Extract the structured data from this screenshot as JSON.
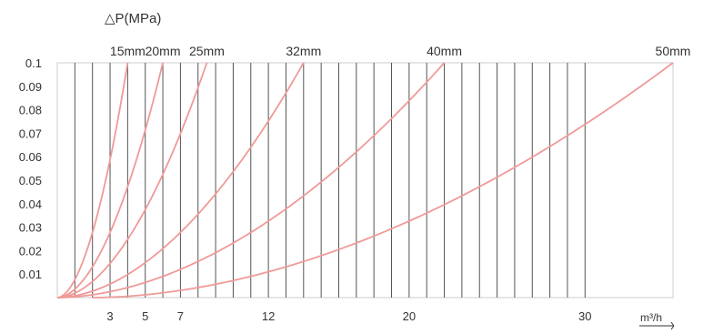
{
  "chart_data": {
    "type": "line",
    "ylabel": "△P(MPa)",
    "xlabel": "m³/h",
    "xlim": [
      0,
      35
    ],
    "ylim": [
      0,
      0.1
    ],
    "x_ticks": [
      3,
      5,
      7,
      12,
      20,
      30
    ],
    "y_ticks": [
      0.01,
      0.02,
      0.03,
      0.04,
      0.05,
      0.06,
      0.07,
      0.08,
      0.09,
      0.1
    ],
    "y_tick_labels": [
      "0.01",
      "0.02",
      "0.03",
      "0.04",
      "0.05",
      "0.06",
      "0.07",
      "0.08",
      "0.09",
      "0.1"
    ],
    "grid_vertical_step": 1,
    "grid_vertical_max": 30,
    "grid_horizontal": false,
    "colors": {
      "curve": "#ef9a98",
      "grid": "#555555",
      "frame": "#cccccc",
      "text": "#333333"
    },
    "series": [
      {
        "name": "15mm",
        "x": [
          0,
          4
        ],
        "y": [
          0,
          0.1
        ]
      },
      {
        "name": "20mm",
        "x": [
          0,
          6
        ],
        "y": [
          0,
          0.1
        ]
      },
      {
        "name": "25mm",
        "x": [
          0,
          8.5
        ],
        "y": [
          0,
          0.1
        ]
      },
      {
        "name": "32mm",
        "x": [
          0,
          14
        ],
        "y": [
          0,
          0.1
        ]
      },
      {
        "name": "40mm",
        "x": [
          0,
          22
        ],
        "y": [
          0,
          0.1
        ]
      },
      {
        "name": "50mm",
        "x": [
          2,
          35
        ],
        "y": [
          0,
          0.1
        ]
      }
    ]
  }
}
